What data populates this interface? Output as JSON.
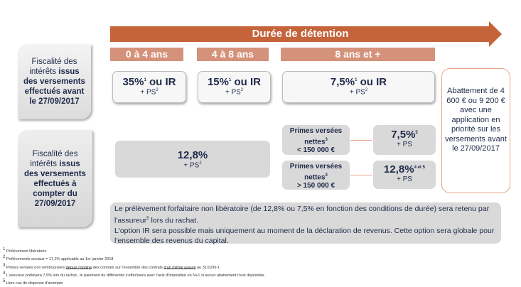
{
  "header": {
    "title": "Durée de détention",
    "periods": [
      "0 à 4 ans",
      "4 à 8 ans",
      "8 ans et +"
    ]
  },
  "row1": {
    "label_pre": "Fiscalité des intérêts ",
    "label_bold": "issus des versements effectués avant le 27/09/2017",
    "cells": [
      {
        "rate": "35%",
        "sup": "1",
        "suffix": " ou IR",
        "ps": "+ PS",
        "ps_sup": "2"
      },
      {
        "rate": "15%",
        "sup": "1",
        "suffix": " ou IR",
        "ps": "+ PS",
        "ps_sup": "2"
      },
      {
        "rate": "7,5%",
        "sup": "1",
        "suffix": " ou IR",
        "ps": "+ PS",
        "ps_sup": "2"
      }
    ]
  },
  "row2": {
    "label_pre": "Fiscalité des intérêts ",
    "label_bold": "issus des versements effectués à compter du 27/09/2017",
    "flat": {
      "rate": "12,8%",
      "ps": "+ PS",
      "ps_sup": "2"
    },
    "tiers": [
      {
        "label": "Primes versées nettes",
        "sup": "3",
        "threshold": "< 150 000 €",
        "rate": "7,5%",
        "rate_sup": "5",
        "ps": "+ PS"
      },
      {
        "label": "Primes versées nettes",
        "sup": "3",
        "threshold": "> 150 000 €",
        "rate": "12,8%",
        "rate_sup": "4 et 5",
        "ps": "+ PS"
      }
    ]
  },
  "abattement": "Abattement de 4 600 € ou 9 200 € avec une application en priorité sur les versements avant le 27/09/2017",
  "note": {
    "line1a": "Le prélèvement forfaitaire non libératoire (de 12,8% ou 7,5% en fonction des conditions de durée) sera retenu par l'assureur",
    "line1sup": "5",
    "line1b": " lors du rachat.",
    "line2": "L'option IR sera  possible mais uniquement au moment de la déclaration de revenus. Cette option sera globale pour l'ensemble des revenus du capital."
  },
  "footnotes": [
    {
      "n": "1",
      "text": "Prélèvement libératoire"
    },
    {
      "n": "2",
      "text": "Prélèvements sociaux = 17,2% applicable au 1er janvier 2018"
    },
    {
      "n": "3",
      "a": "Primes versées non remboursées ",
      "u1": "depuis l'origine",
      "b": " des contrats sur l'ensemble des contrats ",
      "u2": "d'un même assuré",
      "c": " au 31/12/N-1"
    },
    {
      "n": "4",
      "text": "L'assureur prélèvera 7,5% lors du rachat , le paiement du différentiel s'effectuera avec l'avis d'imposition en N+1 si aucun abattement n'est disponible"
    },
    {
      "n": "5",
      "text": "Hors cas de dispense d'acompte"
    }
  ]
}
